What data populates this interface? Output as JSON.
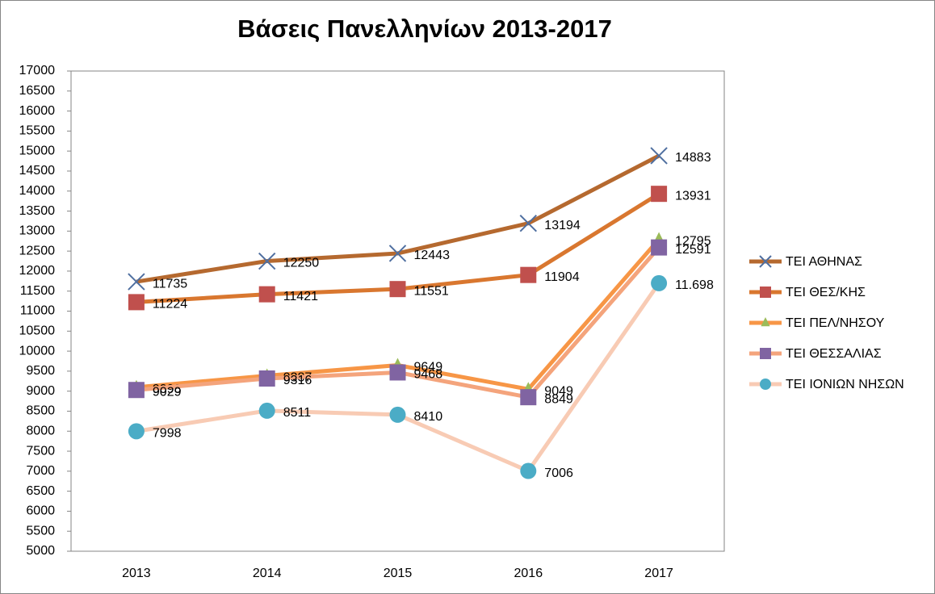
{
  "chart_data": {
    "type": "line",
    "title": "Βάσεις Πανελληνίων 2013-2017",
    "categories": [
      "2013",
      "2014",
      "2015",
      "2016",
      "2017"
    ],
    "ylim": [
      5000,
      17000
    ],
    "yticks": [
      5000,
      5500,
      6000,
      6500,
      7000,
      7500,
      8000,
      8500,
      9000,
      9500,
      10000,
      10500,
      11000,
      11500,
      12000,
      12500,
      13000,
      13500,
      14000,
      14500,
      15000,
      15500,
      16000,
      16500,
      17000
    ],
    "legend": "right",
    "series": [
      {
        "name": "ΤΕΙ ΑΘΗΝΑΣ",
        "color": "#b5692f",
        "marker": "x",
        "marker_color": "#4f6fa0",
        "values": [
          11735,
          12250,
          12443,
          13194,
          14883
        ]
      },
      {
        "name": "ΤΕΙ ΘΕΣ/ΚΗΣ",
        "color": "#d9772f",
        "marker": "square",
        "marker_color": "#c0504d",
        "values": [
          11224,
          11421,
          11551,
          11904,
          13931
        ]
      },
      {
        "name": "ΤΕΙ ΠΕΛ/ΝΗΣΟΥ",
        "color": "#f79646",
        "marker": "triangle",
        "marker_color": "#9bbb59",
        "values": [
          9098,
          9387,
          9649,
          9049,
          12795
        ]
      },
      {
        "name": "ΤΕΙ ΘΕΣΣΑΛΙΑΣ",
        "color": "#f4a47c",
        "marker": "square",
        "marker_color": "#8064a2",
        "values": [
          9029,
          9316,
          9468,
          8849,
          12591
        ]
      },
      {
        "name": "ΤΕΙ ΙΟΝΙΩΝ ΝΗΣΩΝ",
        "color": "#f8cbb4",
        "marker": "circle",
        "marker_color": "#4bacc6",
        "values": [
          7998,
          8511,
          8410,
          7006,
          11698
        ],
        "value_labels": [
          "7998",
          "8511",
          "8410",
          "7006",
          "11.698"
        ]
      }
    ]
  }
}
